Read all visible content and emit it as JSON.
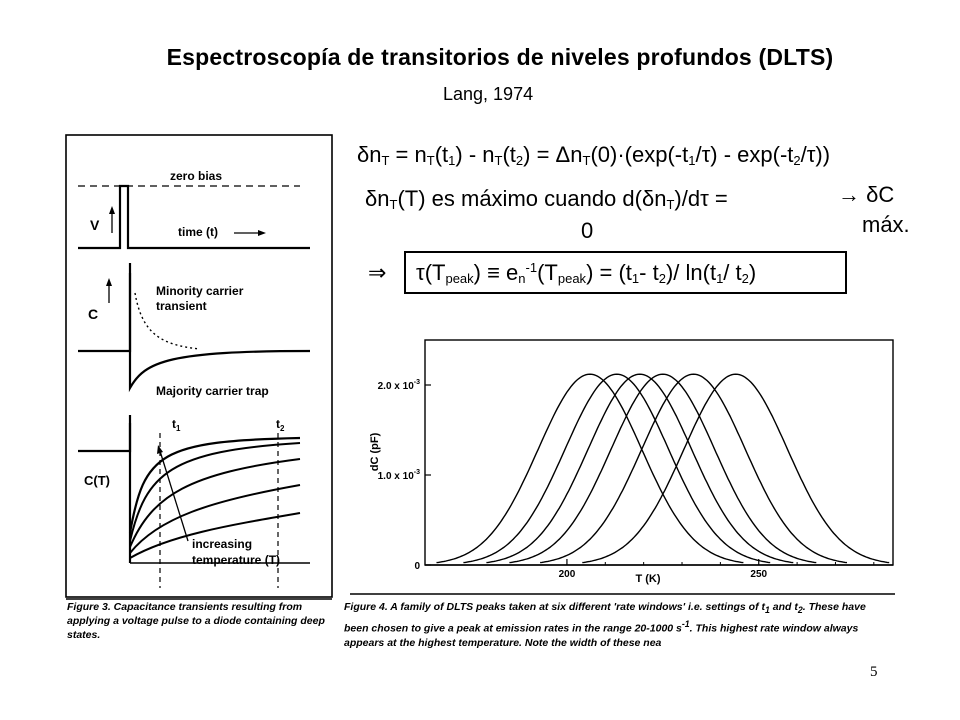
{
  "title": "Espectroscopía de transitorios de niveles profundos (DLTS)",
  "subtitle": "Lang, 1974",
  "equations": {
    "eq1": "δnT = nT(t1) - nT(t2) = ΔnT(0)·(exp(-t1/τ) - exp(-t2/τ))",
    "eq2_line1": "δnT(T) es máximo cuando d(δnT)/dτ =",
    "eq2_line2": "0",
    "eq3_line1": "→ δC",
    "eq3_line2": "máx.",
    "eq4_arrow": "⇒",
    "eq4": "τ(Tpeak) ≡ en-1(Tpeak) = (t1- t2)/ ln(t1/ t2)"
  },
  "figure3": {
    "labels": {
      "zero_bias": "zero bias",
      "v": "V",
      "time": "time (t)",
      "c": "C",
      "minority": "Minority carrier",
      "transient": "transient",
      "majority": "Majority carrier trap",
      "t1": "t1",
      "t2": "t2",
      "ct": "C(T)",
      "increasing": "increasing",
      "temperature": "temperature (T)"
    },
    "caption": "Figure 3. Capacitance transients resulting from applying a voltage pulse to a diode containing deep states."
  },
  "chart_data": {
    "type": "line",
    "title": "",
    "xlabel": "T (K)",
    "ylabel": "dC (pF)",
    "xlim": [
      163,
      285
    ],
    "ylim": [
      0,
      0.0025
    ],
    "xticks": [
      200,
      250
    ],
    "yticks": [
      {
        "value": 0,
        "label": "0"
      },
      {
        "value": 0.001,
        "label": "1.0 x 10-3"
      },
      {
        "value": 0.002,
        "label": "2.0 x 10-3"
      }
    ],
    "series": [
      {
        "peak_T": 206,
        "peak_dC": 0.00212
      },
      {
        "peak_T": 213,
        "peak_dC": 0.00212
      },
      {
        "peak_T": 219,
        "peak_dC": 0.00212
      },
      {
        "peak_T": 225,
        "peak_dC": 0.00212
      },
      {
        "peak_T": 233,
        "peak_dC": 0.00212
      },
      {
        "peak_T": 244,
        "peak_dC": 0.00212
      }
    ],
    "caption": "Figure 4. A family of DLTS peaks taken at six different 'rate windows' i.e. settings of t1 and t2. These have been chosen to give a peak at emission rates in the range 20-1000 s-1. This highest rate window always appears at the highest temperature. Note the width of these nea"
  },
  "page_number": "5"
}
